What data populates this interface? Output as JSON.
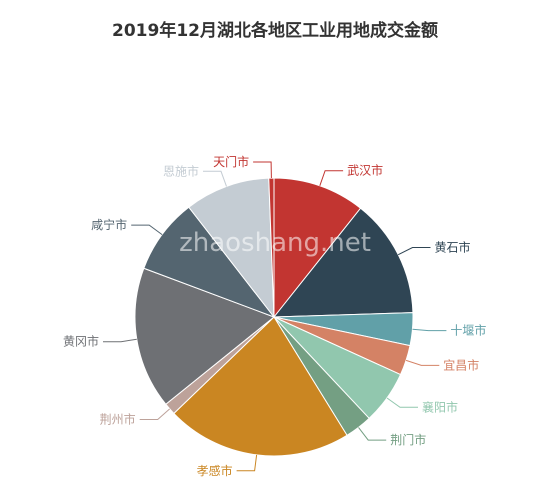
{
  "title": "2019年12月湖北各地区工业用地成交金额",
  "watermark": "zhaoshang.net",
  "chart_data": {
    "type": "pie",
    "title": "2019年12月湖北各地区工业用地成交金额",
    "start_angle_deg": 0,
    "direction": "clockwise",
    "slices": [
      {
        "name": "武汉市",
        "value": 10.7,
        "color": "#c23531"
      },
      {
        "name": "黄石市",
        "value": 13.8,
        "color": "#2f4554"
      },
      {
        "name": "十堰市",
        "value": 3.8,
        "color": "#61a0a8"
      },
      {
        "name": "宜昌市",
        "value": 3.5,
        "color": "#d48265"
      },
      {
        "name": "襄阳市",
        "value": 6.2,
        "color": "#91c7ae"
      },
      {
        "name": "荆门市",
        "value": 3.2,
        "color": "#749f83"
      },
      {
        "name": "孝感市",
        "value": 21.6,
        "color": "#ca8622"
      },
      {
        "name": "荆州市",
        "value": 1.4,
        "color": "#bda29a"
      },
      {
        "name": "黄冈市",
        "value": 16.5,
        "color": "#6e7074"
      },
      {
        "name": "咸宁市",
        "value": 8.8,
        "color": "#546570"
      },
      {
        "name": "恩施市",
        "value": 9.9,
        "color": "#c4ccd3"
      },
      {
        "name": "天门市",
        "value": 0.6,
        "color": "#c23531"
      }
    ]
  }
}
